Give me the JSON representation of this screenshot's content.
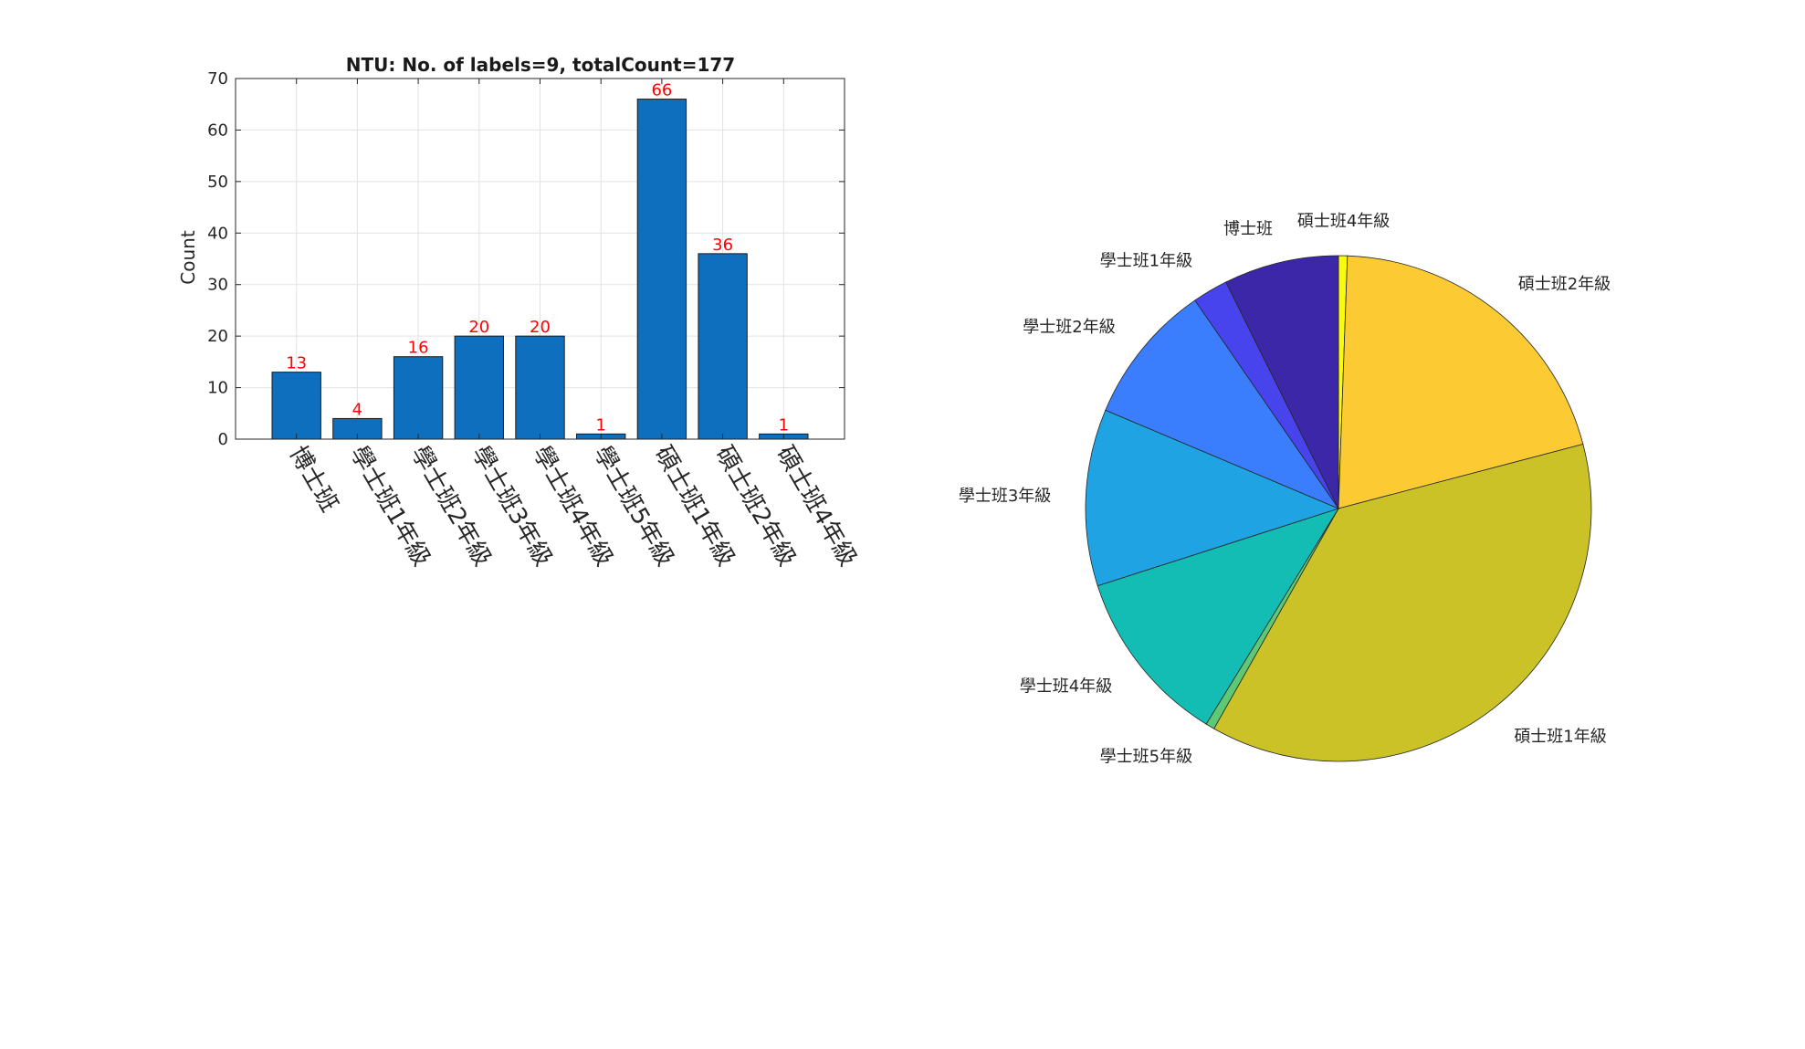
{
  "chart_data": [
    {
      "type": "bar",
      "title": "NTU: No. of labels=9, totalCount=177",
      "xlabel": "",
      "ylabel": "Count",
      "ylim": [
        0,
        70
      ],
      "yticks": [
        0,
        10,
        20,
        30,
        40,
        50,
        60,
        70
      ],
      "grid": true,
      "bar_color": "#0F6FBF",
      "label_color": "#FF0000",
      "categories": [
        "博士班",
        "學士班1年級",
        "學士班2年級",
        "學士班3年級",
        "學士班4年級",
        "學士班5年級",
        "碩士班1年級",
        "碩士班2年級",
        "碩士班4年級"
      ],
      "values": [
        13,
        4,
        16,
        20,
        20,
        1,
        66,
        36,
        1
      ],
      "data_labels": [
        "13",
        "4",
        "16",
        "20",
        "20",
        "1",
        "66",
        "36",
        "1"
      ]
    },
    {
      "type": "pie",
      "slices": [
        {
          "label": "碩士班4年級",
          "value": 1,
          "color": "#F9FB0E"
        },
        {
          "label": "碩士班2年級",
          "value": 36,
          "color": "#FCCB33"
        },
        {
          "label": "碩士班1年級",
          "value": 66,
          "color": "#CAC227"
        },
        {
          "label": "學士班5年級",
          "value": 1,
          "color": "#5DC974"
        },
        {
          "label": "學士班4年級",
          "value": 20,
          "color": "#14BDB4"
        },
        {
          "label": "學士班3年級",
          "value": 20,
          "color": "#1FA3E2"
        },
        {
          "label": "學士班2年級",
          "value": 16,
          "color": "#3A7EFD"
        },
        {
          "label": "學士班1年級",
          "value": 4,
          "color": "#4744EE"
        },
        {
          "label": "博士班",
          "value": 13,
          "color": "#3C27A8"
        }
      ]
    }
  ]
}
